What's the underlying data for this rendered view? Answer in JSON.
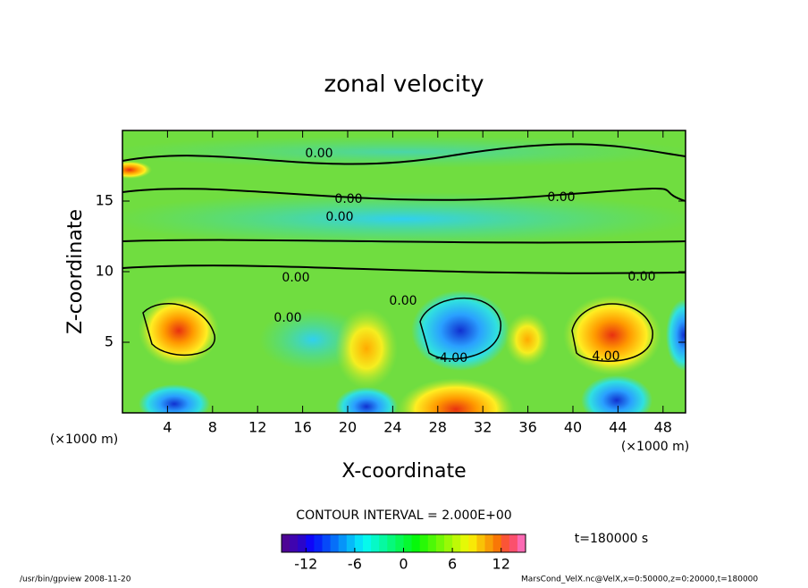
{
  "chart_data": {
    "type": "contour",
    "title": "zonal velocity",
    "x_label": "X-coordinate",
    "y_label": "Z-coordinate",
    "x_unit": "(×1000 m)",
    "y_unit": "(×1000 m)",
    "xlim": [
      0,
      50
    ],
    "xticks": [
      4,
      8,
      12,
      16,
      20,
      24,
      28,
      32,
      36,
      40,
      44,
      48
    ],
    "ylim": [
      0,
      20
    ],
    "yticks": [
      5,
      10,
      15
    ],
    "contour_labels": [
      "0.00",
      "0.00",
      "0.00",
      "0.00",
      "0.00",
      "0.00",
      "0.00",
      "0.00",
      "-4.00",
      "4.00"
    ],
    "contour_interval": "CONTOUR INTERVAL = 2.000E+00",
    "colorbar": {
      "clim": [
        -15,
        15
      ],
      "ticks": [
        -12,
        -6,
        0,
        6,
        12
      ]
    },
    "time_label": "t=180000 s",
    "footer_left": "/usr/bin/gpview   2008-11-20",
    "footer_right": "MarsCond_VelX.nc@VelX,x=0:50000,z=0:20000,t=180000"
  }
}
